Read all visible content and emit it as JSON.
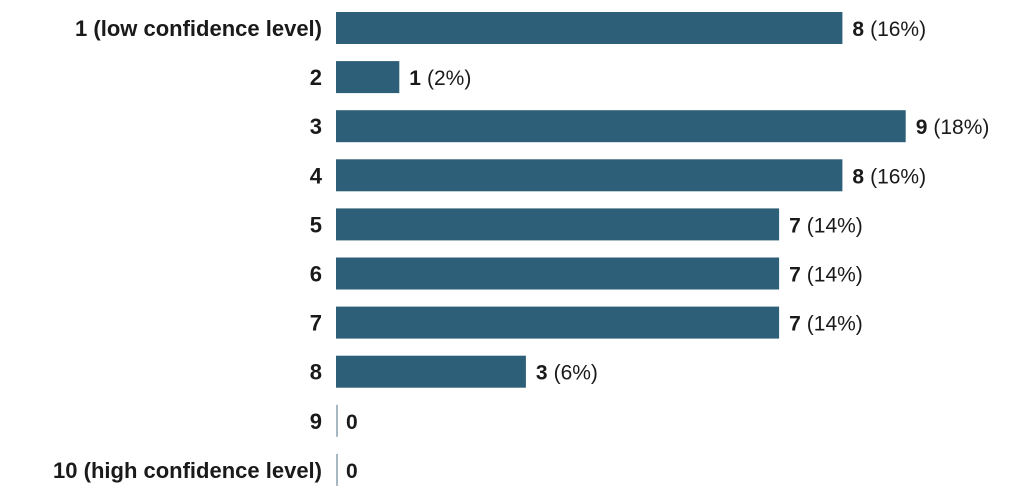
{
  "chart_data": {
    "type": "bar",
    "orientation": "horizontal",
    "categories": [
      "1 (low confidence level)",
      "2",
      "3",
      "4",
      "5",
      "6",
      "7",
      "8",
      "9",
      "10 (high confidence level)"
    ],
    "values": [
      8,
      1,
      9,
      8,
      7,
      7,
      7,
      3,
      0,
      0
    ],
    "value_labels": [
      {
        "count": "8",
        "percent": "(16%)"
      },
      {
        "count": "1",
        "percent": "(2%)"
      },
      {
        "count": "9",
        "percent": "(18%)"
      },
      {
        "count": "8",
        "percent": "(16%)"
      },
      {
        "count": "7",
        "percent": "(14%)"
      },
      {
        "count": "7",
        "percent": "(14%)"
      },
      {
        "count": "7",
        "percent": "(14%)"
      },
      {
        "count": "3",
        "percent": "(6%)"
      },
      {
        "count": "0",
        "percent": ""
      },
      {
        "count": "0",
        "percent": ""
      }
    ],
    "title": "",
    "xlabel": "",
    "ylabel": "",
    "xlim": [
      0,
      9
    ],
    "grid": false,
    "legend": "none",
    "bar_color": "#2e5f78",
    "axis_color": "#8aa0ad",
    "text_color": "#1a1a1a"
  }
}
